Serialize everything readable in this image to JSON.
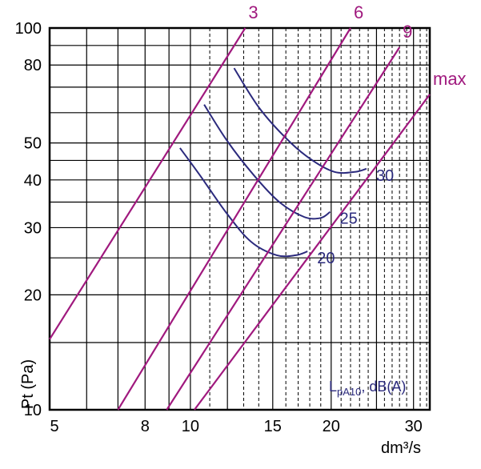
{
  "chart_data": {
    "type": "line",
    "title": "",
    "xlabel": "dm³/s",
    "ylabel": "Pt (Pa)",
    "x_scale": "log",
    "y_scale": "log",
    "xlim": [
      5,
      32.5
    ],
    "ylim": [
      10,
      100
    ],
    "x_tick_labels": [
      "5",
      "8",
      "10",
      "15",
      "20",
      "30"
    ],
    "x_tick_values": [
      5,
      8,
      10,
      15,
      20,
      30
    ],
    "y_tick_labels": [
      "10",
      "20",
      "30",
      "40",
      "50",
      "80",
      "100"
    ],
    "y_tick_values": [
      10,
      20,
      30,
      40,
      50,
      80,
      100
    ],
    "grid": true,
    "x_solid_gridlines": [
      5,
      6,
      7,
      8,
      9,
      10,
      12,
      15,
      20,
      25,
      30
    ],
    "x_dashed_gridlines": [
      11,
      13,
      14,
      16,
      17,
      18,
      19,
      21,
      22,
      23,
      24,
      26,
      27,
      28,
      29,
      31,
      32
    ],
    "y_gridlines": [
      10,
      15,
      20,
      25,
      30,
      35,
      40,
      45,
      50,
      60,
      70,
      80,
      90,
      100
    ],
    "legend_text_main": "L",
    "legend_text_sub": "pA10",
    "legend_text_tail": ", dB(A)",
    "colors": {
      "system_line": "#a0197e",
      "noise_curve": "#2b2a7d",
      "grid": "#000000"
    },
    "system_lines": [
      {
        "name": "3",
        "points": [
          [
            5,
            15.3
          ],
          [
            13.1,
            100
          ]
        ]
      },
      {
        "name": "6",
        "points": [
          [
            7.0,
            10.0
          ],
          [
            22.0,
            100
          ]
        ]
      },
      {
        "name": "9",
        "points": [
          [
            8.9,
            10.0
          ],
          [
            28.0,
            89.0
          ]
        ]
      },
      {
        "name": "max",
        "points": [
          [
            10.2,
            10.0
          ],
          [
            32.5,
            67.0
          ]
        ]
      }
    ],
    "noise_curves": [
      {
        "name": "20",
        "points": [
          [
            9.5,
            48.5
          ],
          [
            10.5,
            41.0
          ],
          [
            12.0,
            32.5
          ],
          [
            13.5,
            27.5
          ],
          [
            15.3,
            25.4
          ],
          [
            16.8,
            25.4
          ],
          [
            17.8,
            26.0
          ]
        ]
      },
      {
        "name": "25",
        "points": [
          [
            10.7,
            63.0
          ],
          [
            12.0,
            50.5
          ],
          [
            13.7,
            41.0
          ],
          [
            15.5,
            35.0
          ],
          [
            17.5,
            32.0
          ],
          [
            19.0,
            31.8
          ],
          [
            19.9,
            33.0
          ]
        ]
      },
      {
        "name": "30",
        "points": [
          [
            12.4,
            78.5
          ],
          [
            14.0,
            62.0
          ],
          [
            16.0,
            51.5
          ],
          [
            18.0,
            45.5
          ],
          [
            20.3,
            42.0
          ],
          [
            22.5,
            42.0
          ],
          [
            23.8,
            42.8
          ]
        ]
      }
    ]
  }
}
